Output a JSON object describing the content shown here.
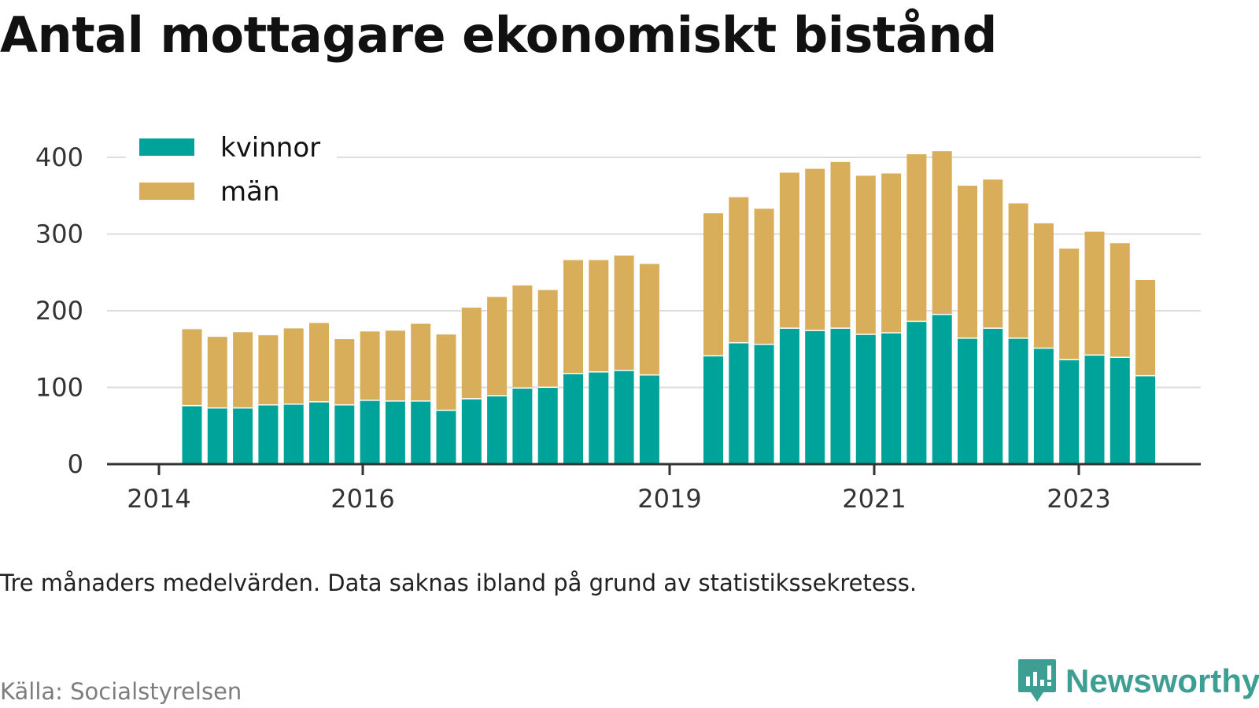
{
  "title": "Antal mottagare ekonomiskt bistånd",
  "note": "Tre månaders medelvärden. Data saknas ibland på grund av statistikssekretess.",
  "source": "Källa: Socialstyrelsen",
  "brand": {
    "name": "Newsworthy",
    "color": "#3d9e93",
    "icon": "bar-chart-bubble-icon"
  },
  "chart_data": {
    "type": "bar",
    "stacked": true,
    "grid": true,
    "legend_position": "top-left",
    "ylim": [
      0,
      400
    ],
    "y_ticks": [
      0,
      100,
      200,
      300,
      400
    ],
    "x_tick_labels": [
      "2014",
      "2016",
      "2019",
      "2021",
      "2023"
    ],
    "series": [
      {
        "name": "kvinnor",
        "color": "#00a39a",
        "values": [
          77,
          74,
          74,
          78,
          79,
          82,
          78,
          84,
          83,
          83,
          71,
          86,
          90,
          100,
          101,
          119,
          121,
          123,
          117,
          142,
          159,
          157,
          178,
          175,
          178,
          170,
          172,
          187,
          196,
          165,
          178,
          165,
          152,
          137,
          143,
          140,
          116
        ]
      },
      {
        "name": "män",
        "color": "#d9ae5b",
        "values": [
          99,
          92,
          98,
          90,
          98,
          102,
          85,
          89,
          91,
          100,
          98,
          118,
          128,
          133,
          126,
          147,
          145,
          149,
          144,
          185,
          189,
          176,
          202,
          210,
          216,
          206,
          207,
          217,
          212,
          198,
          193,
          175,
          162,
          144,
          160,
          148,
          124
        ]
      }
    ]
  }
}
